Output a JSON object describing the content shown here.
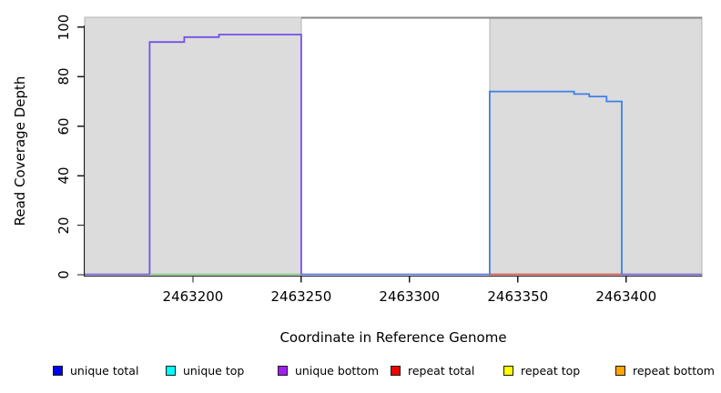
{
  "chart_data": {
    "type": "line",
    "subtype": "step-coverage-plot",
    "title": "",
    "xlabel": "Coordinate in Reference Genome",
    "ylabel": "Read Coverage Depth",
    "x_ticks": [
      2463200,
      2463250,
      2463300,
      2463350,
      2463400
    ],
    "y_ticks": [
      0,
      20,
      40,
      60,
      80,
      100
    ],
    "xlim": [
      2463150,
      2463435
    ],
    "ylim": [
      0,
      104
    ],
    "grid": false,
    "background": "#ffffff",
    "shaded_regions": [
      {
        "name": "left-masked-region",
        "x1": 2463150,
        "x2": 2463250,
        "fill": "#dcdcdc",
        "edge": "#b3b3b3"
      },
      {
        "name": "right-masked-region",
        "x1": 2463337,
        "x2": 2463435,
        "fill": "#dcdcdc",
        "edge": "#b3b3b3"
      }
    ],
    "top_border": {
      "x1": 2463250,
      "x2": 2463435,
      "y": 104,
      "color": "#868686"
    },
    "series": [
      {
        "name": "left coverage block (unique bottom)",
        "color": "#7352e6",
        "steps": [
          {
            "x": 2463180,
            "y": 94
          },
          {
            "x": 2463196,
            "y": 96
          },
          {
            "x": 2463212,
            "y": 97
          },
          {
            "x": 2463250,
            "y": 0
          }
        ]
      },
      {
        "name": "right coverage block (unique top/total)",
        "color": "#3f7fe8",
        "steps": [
          {
            "x": 2463337,
            "y": 74
          },
          {
            "x": 2463376,
            "y": 73
          },
          {
            "x": 2463383,
            "y": 72
          },
          {
            "x": 2463391,
            "y": 70
          },
          {
            "x": 2463398,
            "y": 0
          }
        ]
      }
    ],
    "baseline_segments": [
      {
        "x1": 2463150,
        "x2": 2463180,
        "color": "#6b5be0"
      },
      {
        "x1": 2463180,
        "x2": 2463250,
        "color": "#7fcf7f"
      },
      {
        "x1": 2463250,
        "x2": 2463337,
        "color": "#4868e6"
      },
      {
        "x1": 2463337,
        "x2": 2463398,
        "color": "#e64545"
      },
      {
        "x1": 2463398,
        "x2": 2463435,
        "color": "#6b5be0"
      }
    ],
    "legend_position": "bottom",
    "legend": [
      {
        "label": "unique total",
        "color": "#0000ee"
      },
      {
        "label": "unique top",
        "color": "#00ffff"
      },
      {
        "label": "unique bottom",
        "color": "#a020f0"
      },
      {
        "label": "repeat total",
        "color": "#ee0000"
      },
      {
        "label": "repeat top",
        "color": "#ffff00"
      },
      {
        "label": "repeat bottom",
        "color": "#ffa500"
      }
    ]
  }
}
